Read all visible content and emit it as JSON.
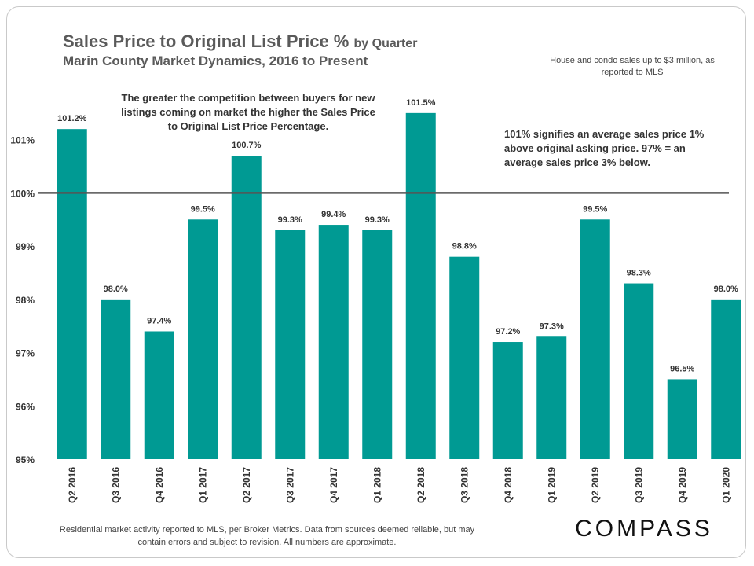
{
  "header": {
    "title_main": "Sales Price to Original List Price %",
    "title_by": "by Quarter",
    "subtitle": "Marin County Market Dynamics, 2016 to Present",
    "source_note": "House and condo sales up to $3 million, as reported to MLS"
  },
  "annotations": {
    "competition": "The greater the competition between buyers for new listings coming on market the higher the Sales Price to Original List Price Percentage.",
    "meaning": "101% signifies an average sales price 1% above original asking price. 97% = an average sales price 3% below."
  },
  "footer": {
    "disclaimer": "Residential market activity reported to MLS, per Broker Metrics. Data from sources deemed reliable, but may contain errors and subject to revision. All numbers are approximate.",
    "brand": "COMPASS"
  },
  "colors": {
    "bar": "#009a93",
    "reference_line": "#555555",
    "text": "#333333"
  },
  "chart_data": {
    "type": "bar",
    "title": "Sales Price to Original List Price % by Quarter",
    "categories": [
      "Q2 2016",
      "Q3 2016",
      "Q4 2016",
      "Q1 2017",
      "Q2 2017",
      "Q3 2017",
      "Q4 2017",
      "Q1 2018",
      "Q2 2018",
      "Q3 2018",
      "Q4 2018",
      "Q1 2019",
      "Q2 2019",
      "Q3 2019",
      "Q4 2019",
      "Q1 2020"
    ],
    "values": [
      101.2,
      98.0,
      97.4,
      99.5,
      100.7,
      99.3,
      99.4,
      99.3,
      101.5,
      98.8,
      97.2,
      97.3,
      99.5,
      98.3,
      96.5,
      98.0
    ],
    "value_labels": [
      "101.2%",
      "98.0%",
      "97.4%",
      "99.5%",
      "100.7%",
      "99.3%",
      "99.4%",
      "99.3%",
      "101.5%",
      "98.8%",
      "97.2%",
      "97.3%",
      "99.5%",
      "98.3%",
      "96.5%",
      "98.0%"
    ],
    "ylim": [
      95,
      102
    ],
    "yticks": [
      95,
      96,
      97,
      98,
      99,
      100,
      101
    ],
    "ytick_labels": [
      "95%",
      "96%",
      "97%",
      "98%",
      "99%",
      "100%",
      "101%"
    ],
    "reference_line": 100,
    "xlabel": "",
    "ylabel": ""
  }
}
